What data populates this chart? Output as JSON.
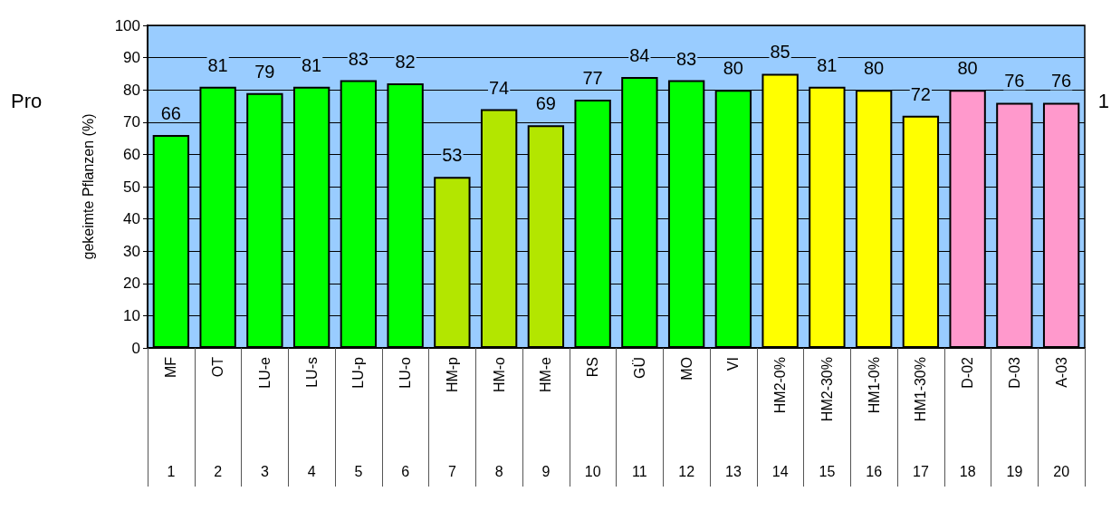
{
  "chart_data": {
    "type": "bar",
    "ylabel": "gekeimte Pflanzen (%)",
    "categories": [
      "MF\n1",
      "OT\n2",
      "LU-e\n3",
      "LU-s\n4",
      "LU-p\n5",
      "LU-o\n6",
      "HM-p\n7",
      "HM-o\n8",
      "HM-e\n9",
      "RS\n10",
      "GÜ\n11",
      "MO\n12",
      "VI\n13",
      "HM2-0%\n14",
      "HM2-30%\n15",
      "HM1-0%\n16",
      "HM1-30%\n17",
      "D-02\n18",
      "D-03\n19",
      "A-03\n20"
    ],
    "values": [
      66,
      81,
      79,
      81,
      83,
      82,
      53,
      74,
      69,
      77,
      84,
      83,
      80,
      85,
      81,
      80,
      72,
      80,
      76,
      76
    ],
    "colors": [
      "#00ff00",
      "#00ff00",
      "#00ff00",
      "#00ff00",
      "#00ff00",
      "#00ff00",
      "#b3e600",
      "#b3e600",
      "#b3e600",
      "#00ff00",
      "#00ff00",
      "#00ff00",
      "#00ff00",
      "#ffff00",
      "#ffff00",
      "#ffff00",
      "#ffff00",
      "#ff99cc",
      "#ff99cc",
      "#ff99cc"
    ],
    "ylim": [
      0,
      100
    ],
    "yticks": [
      0,
      10,
      20,
      30,
      40,
      50,
      60,
      70,
      80,
      90,
      100
    ],
    "grid": "y",
    "data_labels": true,
    "annotations": [
      "Pro",
      "1"
    ]
  }
}
